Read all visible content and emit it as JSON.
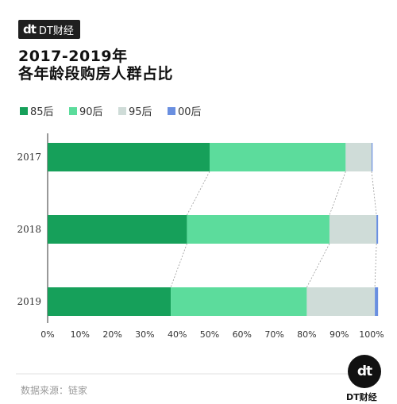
{
  "brand": {
    "logo": "dt",
    "name": "DT财经"
  },
  "title_line1": "2017-2019年",
  "title_line2": "各年龄段购房人群占比",
  "source": "数据来源：链家",
  "footer": {
    "logo": "dt",
    "name": "DT财经"
  },
  "colors": {
    "s85": "#16a05a",
    "s90": "#5cdc9c",
    "s95": "#cfdcd8",
    "s00": "#6a8fe0"
  },
  "chart_data": {
    "type": "bar",
    "orientation": "horizontal",
    "stacked": true,
    "categories": [
      "2017",
      "2018",
      "2019"
    ],
    "series": [
      {
        "name": "85后",
        "values": [
          50,
          43,
          38
        ],
        "color": "#16a05a"
      },
      {
        "name": "90后",
        "values": [
          42,
          44,
          42
        ],
        "color": "#5cdc9c"
      },
      {
        "name": "95后",
        "values": [
          8,
          14.5,
          21
        ],
        "color": "#cfdcd8"
      },
      {
        "name": "00后",
        "values": [
          0.3,
          0.5,
          1
        ],
        "color": "#6a8fe0"
      }
    ],
    "xlim": [
      0,
      100
    ],
    "xticks": [
      "0%",
      "10%",
      "20%",
      "30%",
      "40%",
      "50%",
      "60%",
      "70%",
      "80%",
      "90%",
      "100%"
    ],
    "legend_position": "top-left",
    "connector_lines": true
  }
}
